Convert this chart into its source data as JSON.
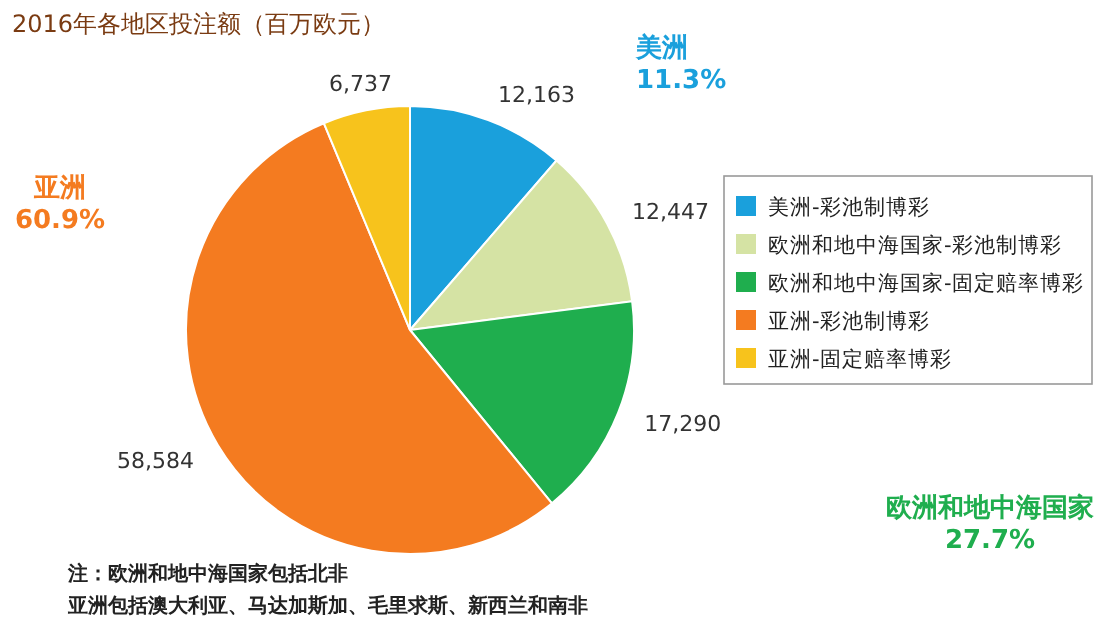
{
  "chart_data": {
    "type": "pie",
    "title": "2016年各地区投注额（百万欧元）",
    "categories": [
      "美洲-彩池制博彩",
      "欧洲和地中海国家-彩池制博彩",
      "欧洲和地中海国家-固定赔率博彩",
      "亚洲-彩池制博彩",
      "亚洲-固定赔率博彩"
    ],
    "values": [
      12163,
      12447,
      17290,
      58584,
      6737
    ],
    "value_labels": [
      "12,163",
      "12,447",
      "17,290",
      "58,584",
      "6,737"
    ],
    "colors": [
      "#1aa0dc",
      "#d5e3a4",
      "#1fae4e",
      "#f47b20",
      "#f7c31c"
    ],
    "legend": "right",
    "annotations": [
      "美洲\n11.3%",
      "欧洲和地中海国家\n27.7%",
      "亚洲\n60.9%",
      "注：欧洲和地中海国家包括北非",
      "亚洲包括澳大利亚、马达加斯加、毛里求斯、新西兰和南非"
    ]
  }
}
